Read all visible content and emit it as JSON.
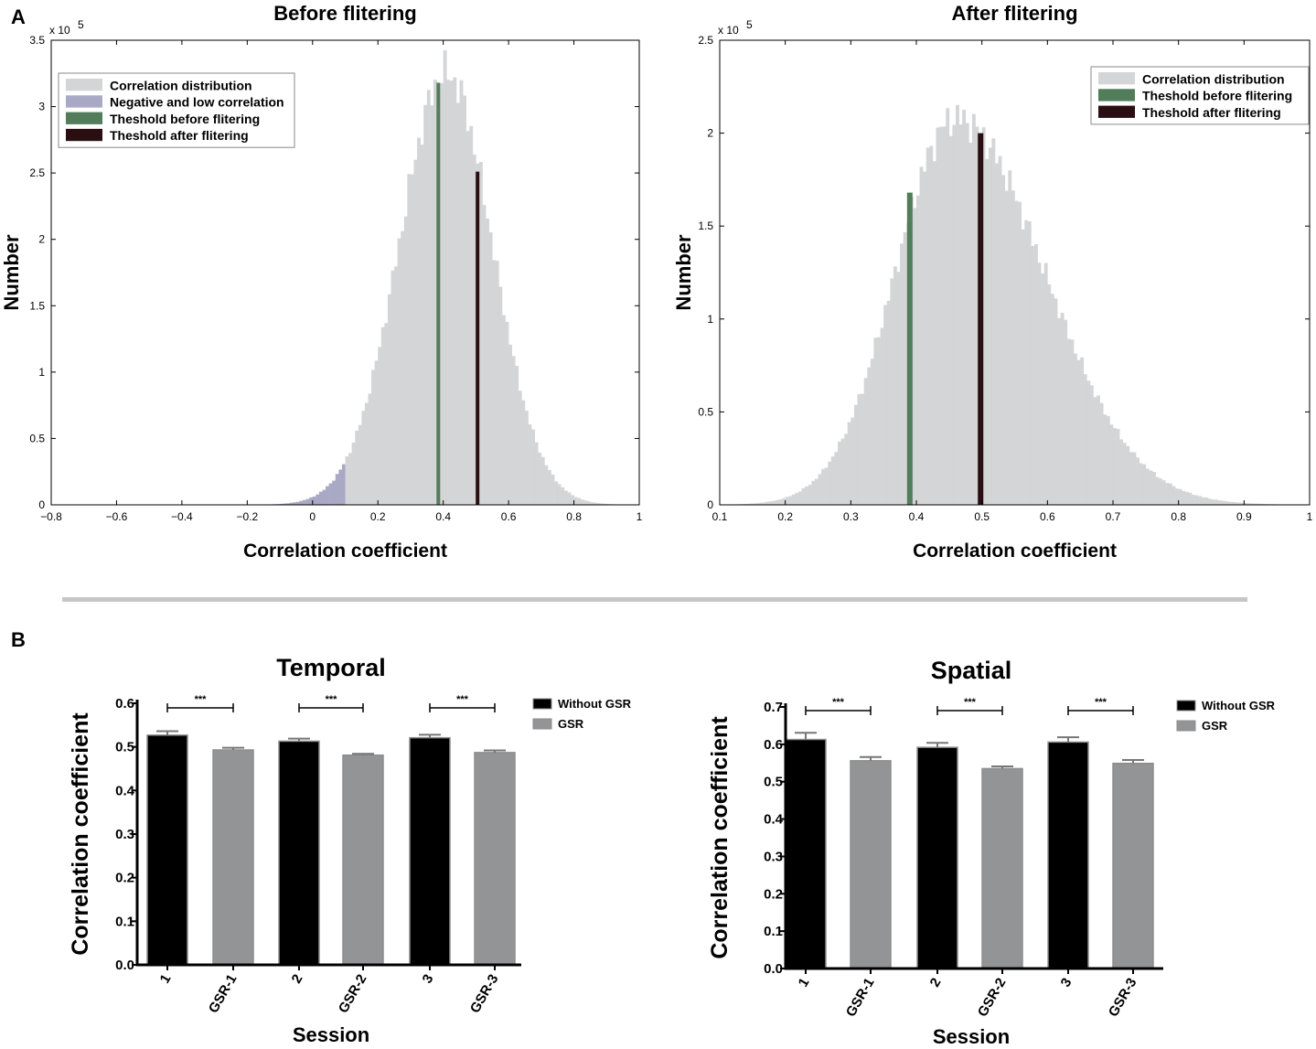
{
  "panels": {
    "a": "A",
    "b": "B"
  },
  "colors": {
    "dist": "#d3d5d7",
    "negative": "#a9a9c6",
    "thr_before": "#527d5a",
    "thr_after": "#2a0e12",
    "bar_without": "#000000",
    "bar_gsr": "#939496",
    "separator": "#c6c6c6"
  },
  "chart_data": [
    {
      "id": "before",
      "type": "bar",
      "title": "Before flitering",
      "xlabel": "Correlation coefficient",
      "ylabel": "Number",
      "y_exponent": "x 10",
      "y_exponent_power": "5",
      "xlim": [
        -0.8,
        1.0
      ],
      "ylim": [
        0,
        3.5
      ],
      "xticks": [
        "−0.8",
        "−0.6",
        "−0.4",
        "−0.2",
        "0",
        "0.2",
        "0.4",
        "0.6",
        "0.8",
        "1"
      ],
      "yticks": [
        "0",
        "0.5",
        "1",
        "1.5",
        "2",
        "2.5",
        "3",
        "3.5"
      ],
      "distribution": {
        "peak_x": 0.41,
        "peak_y": 3.25,
        "sigma_left": 0.145,
        "sigma_right": 0.14,
        "x_min": -0.7,
        "x_max": 0.95,
        "bin_width": 0.01
      },
      "low_cutoff": 0.1,
      "thresholds": [
        {
          "label": "Theshold before flitering",
          "x": 0.385,
          "y": 3.18,
          "color_key": "thr_before"
        },
        {
          "label": "Theshold after flitering",
          "x": 0.505,
          "y": 2.51,
          "color_key": "thr_after"
        }
      ],
      "legend": [
        {
          "label": "Correlation distribution",
          "color_key": "dist"
        },
        {
          "label": "Negative and low correlation",
          "color_key": "negative"
        },
        {
          "label": "Theshold before flitering",
          "color_key": "thr_before"
        },
        {
          "label": "Theshold after flitering",
          "color_key": "thr_after"
        }
      ]
    },
    {
      "id": "after",
      "type": "bar",
      "title": "After flitering",
      "xlabel": "Correlation coefficient",
      "ylabel": "Number",
      "y_exponent": "x 10",
      "y_exponent_power": "5",
      "xlim": [
        0.1,
        1.0
      ],
      "ylim": [
        0,
        2.5
      ],
      "xticks": [
        "0.1",
        "0.2",
        "0.3",
        "0.4",
        "0.5",
        "0.6",
        "0.7",
        "0.8",
        "0.9",
        "1"
      ],
      "yticks": [
        "0",
        "0.5",
        "1",
        "1.5",
        "2",
        "2.5"
      ],
      "distribution": {
        "peak_x": 0.46,
        "peak_y": 2.08,
        "sigma_left": 0.092,
        "sigma_right": 0.135,
        "x_min": 0.1,
        "x_max": 0.95,
        "bin_width": 0.005
      },
      "thresholds": [
        {
          "label": "Theshold before flitering",
          "x": 0.39,
          "y": 1.68,
          "color_key": "thr_before"
        },
        {
          "label": "Theshold after flitering",
          "x": 0.498,
          "y": 2.0,
          "color_key": "thr_after"
        }
      ],
      "legend": [
        {
          "label": "Correlation distribution",
          "color_key": "dist"
        },
        {
          "label": "Theshold before flitering",
          "color_key": "thr_before"
        },
        {
          "label": "Theshold after flitering",
          "color_key": "thr_after"
        }
      ]
    },
    {
      "id": "temporal",
      "type": "bar",
      "title": "Temporal",
      "xlabel": "Session",
      "ylabel": "Correlation coefficient",
      "ylim": [
        0,
        0.6
      ],
      "yticks": [
        "0.0",
        "0.1",
        "0.2",
        "0.3",
        "0.4",
        "0.5",
        "0.6"
      ],
      "categories": [
        "1",
        "GSR-1",
        "2",
        "GSR-2",
        "3",
        "GSR-3"
      ],
      "values": [
        0.527,
        0.493,
        0.513,
        0.481,
        0.521,
        0.487
      ],
      "errors": [
        0.009,
        0.005,
        0.006,
        0.003,
        0.007,
        0.005
      ],
      "groups": [
        "without",
        "gsr",
        "without",
        "gsr",
        "without",
        "gsr"
      ],
      "significance": [
        {
          "pair": [
            0,
            1
          ],
          "label": "***"
        },
        {
          "pair": [
            2,
            3
          ],
          "label": "***"
        },
        {
          "pair": [
            4,
            5
          ],
          "label": "***"
        }
      ],
      "legend": [
        {
          "label": "Without GSR",
          "color_key": "bar_without"
        },
        {
          "label": "GSR",
          "color_key": "bar_gsr"
        }
      ]
    },
    {
      "id": "spatial",
      "type": "bar",
      "title": "Spatial",
      "xlabel": "Session",
      "ylabel": "Correlation coefficient",
      "ylim": [
        0,
        0.7
      ],
      "yticks": [
        "0.0",
        "0.1",
        "0.2",
        "0.3",
        "0.4",
        "0.5",
        "0.6",
        "0.7"
      ],
      "categories": [
        "1",
        "GSR-1",
        "2",
        "GSR-2",
        "3",
        "GSR-3"
      ],
      "values": [
        0.613,
        0.556,
        0.592,
        0.535,
        0.606,
        0.549
      ],
      "errors": [
        0.018,
        0.01,
        0.012,
        0.006,
        0.013,
        0.009
      ],
      "groups": [
        "without",
        "gsr",
        "without",
        "gsr",
        "without",
        "gsr"
      ],
      "significance": [
        {
          "pair": [
            0,
            1
          ],
          "label": "***"
        },
        {
          "pair": [
            2,
            3
          ],
          "label": "***"
        },
        {
          "pair": [
            4,
            5
          ],
          "label": "***"
        }
      ],
      "legend": [
        {
          "label": "Without GSR",
          "color_key": "bar_without"
        },
        {
          "label": "GSR",
          "color_key": "bar_gsr"
        }
      ]
    }
  ]
}
